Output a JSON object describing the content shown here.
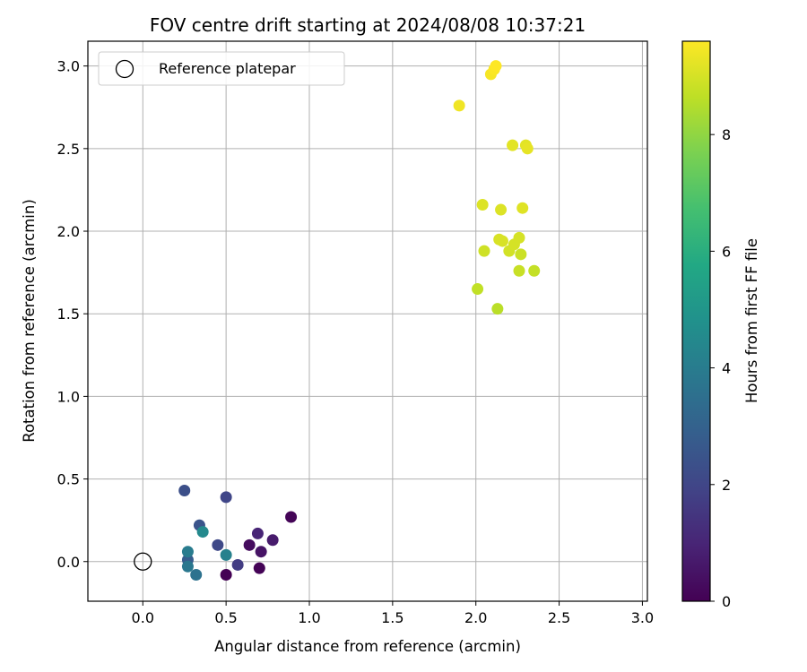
{
  "chart_data": {
    "type": "scatter",
    "title": "FOV centre drift starting at 2024/08/08 10:37:21",
    "xlabel": "Angular distance from reference (arcmin)",
    "ylabel": "Rotation from reference (arcmin)",
    "xlim": [
      -0.33,
      3.03
    ],
    "ylim": [
      -0.24,
      3.15
    ],
    "x_ticks": [
      "0.0",
      "0.5",
      "1.0",
      "1.5",
      "2.0",
      "2.5",
      "3.0"
    ],
    "x_tick_values": [
      0,
      0.5,
      1.0,
      1.5,
      2.0,
      2.5,
      3.0
    ],
    "y_ticks": [
      "0.0",
      "0.5",
      "1.0",
      "1.5",
      "2.0",
      "2.5",
      "3.0"
    ],
    "y_tick_values": [
      0,
      0.5,
      1.0,
      1.5,
      2.0,
      2.5,
      3.0
    ],
    "grid": true,
    "legend": {
      "placement": "top-left",
      "entries": [
        {
          "label": "Reference platepar",
          "marker": "open-circle",
          "x": 0,
          "y": 0
        }
      ]
    },
    "colorbar": {
      "label": "Hours from first FF file",
      "colormap": "viridis",
      "range": [
        0,
        9.6
      ],
      "ticks": [
        "0",
        "2",
        "4",
        "6",
        "8"
      ],
      "tick_values": [
        0,
        2,
        4,
        6,
        8
      ]
    },
    "points": [
      {
        "x": 0.5,
        "y": -0.08,
        "t": 0.0
      },
      {
        "x": 0.7,
        "y": -0.04,
        "t": 0.05
      },
      {
        "x": 0.89,
        "y": 0.27,
        "t": 0.1
      },
      {
        "x": 0.64,
        "y": 0.1,
        "t": 0.3
      },
      {
        "x": 0.71,
        "y": 0.06,
        "t": 0.5
      },
      {
        "x": 0.78,
        "y": 0.13,
        "t": 0.7
      },
      {
        "x": 0.69,
        "y": 0.17,
        "t": 1.0
      },
      {
        "x": 0.57,
        "y": -0.02,
        "t": 1.7
      },
      {
        "x": 0.5,
        "y": 0.39,
        "t": 2.0
      },
      {
        "x": 0.45,
        "y": 0.1,
        "t": 2.1
      },
      {
        "x": 0.25,
        "y": 0.43,
        "t": 2.3
      },
      {
        "x": 0.34,
        "y": 0.22,
        "t": 2.5
      },
      {
        "x": 0.27,
        "y": 0.01,
        "t": 2.8
      },
      {
        "x": 0.32,
        "y": -0.08,
        "t": 3.6
      },
      {
        "x": 0.27,
        "y": -0.03,
        "t": 3.8
      },
      {
        "x": 0.27,
        "y": 0.06,
        "t": 4.0
      },
      {
        "x": 0.5,
        "y": 0.04,
        "t": 4.2
      },
      {
        "x": 0.36,
        "y": 0.18,
        "t": 4.5
      },
      {
        "x": 2.13,
        "y": 1.53,
        "t": 8.6
      },
      {
        "x": 2.01,
        "y": 1.65,
        "t": 8.7
      },
      {
        "x": 2.35,
        "y": 1.76,
        "t": 8.75
      },
      {
        "x": 2.26,
        "y": 1.76,
        "t": 8.8
      },
      {
        "x": 2.27,
        "y": 1.86,
        "t": 8.85
      },
      {
        "x": 2.05,
        "y": 1.88,
        "t": 8.9
      },
      {
        "x": 2.2,
        "y": 1.88,
        "t": 8.95
      },
      {
        "x": 2.23,
        "y": 1.92,
        "t": 9.0
      },
      {
        "x": 2.26,
        "y": 1.96,
        "t": 9.0
      },
      {
        "x": 2.14,
        "y": 1.95,
        "t": 9.05
      },
      {
        "x": 2.16,
        "y": 1.94,
        "t": 9.05
      },
      {
        "x": 2.04,
        "y": 2.16,
        "t": 9.1
      },
      {
        "x": 2.15,
        "y": 2.13,
        "t": 9.1
      },
      {
        "x": 2.28,
        "y": 2.14,
        "t": 9.15
      },
      {
        "x": 2.22,
        "y": 2.52,
        "t": 9.2
      },
      {
        "x": 2.3,
        "y": 2.52,
        "t": 9.2
      },
      {
        "x": 2.31,
        "y": 2.5,
        "t": 9.25
      },
      {
        "x": 1.9,
        "y": 2.76,
        "t": 9.4
      },
      {
        "x": 2.09,
        "y": 2.95,
        "t": 9.5
      },
      {
        "x": 2.11,
        "y": 2.98,
        "t": 9.55
      },
      {
        "x": 2.12,
        "y": 3.0,
        "t": 9.6
      }
    ]
  }
}
